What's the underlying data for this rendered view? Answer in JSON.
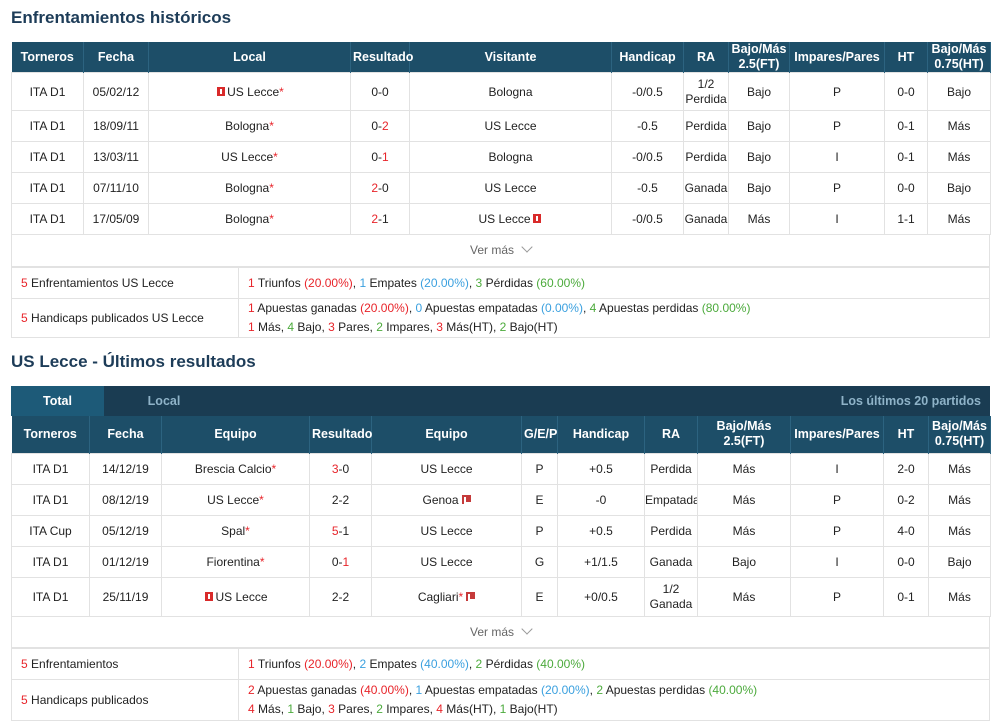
{
  "h2h": {
    "title": "Enfrentamientos históricos",
    "headers": [
      "Torneros",
      "Fecha",
      "Local",
      "Resultado",
      "Visitante",
      "Handicap",
      "RA",
      "Bajo/Más 2.5(FT)",
      "Impares/Pares",
      "HT",
      "Bajo/Más 0.75(HT)"
    ],
    "rows": [
      {
        "league": "ITA D1",
        "date": "05/02/12",
        "home": "US Lecce",
        "home_star": "*",
        "score_a": "0",
        "score_b": "0",
        "away": "Bologna",
        "away_star": "",
        "handicap": "-0/0.5",
        "ra1": "1/2",
        "ra2": "Perdida",
        "ou": "Bajo",
        "oe": "P",
        "ht": "0-0",
        "ou_ht": "Bajo"
      },
      {
        "league": "ITA D1",
        "date": "18/09/11",
        "home": "Bologna",
        "home_star": "*",
        "score_a": "0",
        "score_b": "2",
        "away": "US Lecce",
        "away_star": "",
        "handicap": "-0.5",
        "ra1": "Perdida",
        "ra2": "",
        "ou": "Bajo",
        "oe": "P",
        "ht": "0-1",
        "ou_ht": "Más"
      },
      {
        "league": "ITA D1",
        "date": "13/03/11",
        "home": "US Lecce",
        "home_star": "*",
        "score_a": "0",
        "score_b": "1",
        "away": "Bologna",
        "away_star": "",
        "handicap": "-0/0.5",
        "ra1": "Perdida",
        "ra2": "",
        "ou": "Bajo",
        "oe": "I",
        "ht": "0-1",
        "ou_ht": "Más"
      },
      {
        "league": "ITA D1",
        "date": "07/11/10",
        "home": "Bologna",
        "home_star": "*",
        "score_a": "2",
        "score_b": "0",
        "away": "US Lecce",
        "away_star": "",
        "handicap": "-0.5",
        "ra1": "Ganada",
        "ra2": "",
        "ou": "Bajo",
        "oe": "P",
        "ht": "0-0",
        "ou_ht": "Bajo"
      },
      {
        "league": "ITA D1",
        "date": "17/05/09",
        "home": "Bologna",
        "home_star": "*",
        "score_a": "2",
        "score_b": "1",
        "away": "US Lecce",
        "away_star": "",
        "handicap": "-0/0.5",
        "ra1": "Ganada",
        "ra2": "",
        "ou": "Más",
        "oe": "I",
        "ht": "1-1",
        "ou_ht": "Más"
      }
    ],
    "ver_mas": "Ver más",
    "summary1": {
      "label_n": "5",
      "label": "Enfrentamientos US Lecce",
      "n1": "1",
      "t1": "Triunfos",
      "p1": "(20.00%)",
      "n2": "1",
      "t2": "Empates",
      "p2": "(20.00%)",
      "n3": "3",
      "t3": "Pérdidas",
      "p3": "(60.00%)"
    },
    "summary2": {
      "label_n": "5",
      "label": "Handicaps publicados US Lecce",
      "n1": "1",
      "t1": "Apuestas ganadas",
      "p1": "(20.00%)",
      "n2": "0",
      "t2": "Apuestas empatadas",
      "p2": "(0.00%)",
      "n3": "4",
      "t3": "Apuestas perdidas",
      "p3": "(80.00%)",
      "l2_a": "1",
      "l2_at": "Más,",
      "l2_b": "4",
      "l2_bt": "Bajo,",
      "l2_c": "3",
      "l2_ct": "Pares,",
      "l2_d": "2",
      "l2_dt": "Impares,",
      "l2_e": "3",
      "l2_et": "Más(HT),",
      "l2_f": "2",
      "l2_ft": "Bajo(HT)"
    }
  },
  "recent": {
    "title": "US Lecce - Últimos resultados",
    "tab_total": "Total",
    "tab_local": "Local",
    "last_n": "Los últimos 20 partidos",
    "headers": [
      "Torneros",
      "Fecha",
      "Equipo",
      "Resultado",
      "Equipo",
      "G/E/P",
      "Handicap",
      "RA",
      "Bajo/Más 2.5(FT)",
      "Impares/Pares",
      "HT",
      "Bajo/Más 0.75(HT)"
    ],
    "rows": [
      {
        "league": "ITA D1",
        "date": "14/12/19",
        "home": "Brescia Calcio",
        "score_a": "3",
        "score_b": "0",
        "away": "US Lecce",
        "gep": "P",
        "handicap": "+0.5",
        "ra1": "Perdida",
        "ra2": "",
        "ou": "Más",
        "oe": "I",
        "ht": "2-0",
        "ou_ht": "Más"
      },
      {
        "league": "ITA D1",
        "date": "08/12/19",
        "home": "US Lecce",
        "score_a": "2",
        "score_b": "2",
        "away": "Genoa",
        "gep": "E",
        "handicap": "-0",
        "ra1": "Empatada",
        "ra2": "",
        "ou": "Más",
        "oe": "P",
        "ht": "0-2",
        "ou_ht": "Más"
      },
      {
        "league": "ITA Cup",
        "date": "05/12/19",
        "home": "Spal",
        "score_a": "5",
        "score_b": "1",
        "away": "US Lecce",
        "gep": "P",
        "handicap": "+0.5",
        "ra1": "Perdida",
        "ra2": "",
        "ou": "Más",
        "oe": "P",
        "ht": "4-0",
        "ou_ht": "Más"
      },
      {
        "league": "ITA D1",
        "date": "01/12/19",
        "home": "Fiorentina",
        "score_a": "0",
        "score_b": "1",
        "away": "US Lecce",
        "gep": "G",
        "handicap": "+1/1.5",
        "ra1": "Ganada",
        "ra2": "",
        "ou": "Bajo",
        "oe": "I",
        "ht": "0-0",
        "ou_ht": "Bajo"
      },
      {
        "league": "ITA D1",
        "date": "25/11/19",
        "home": "US Lecce",
        "score_a": "2",
        "score_b": "2",
        "away": "Cagliari",
        "gep": "E",
        "handicap": "+0/0.5",
        "ra1": "1/2",
        "ra2": "Ganada",
        "ou": "Más",
        "oe": "P",
        "ht": "0-1",
        "ou_ht": "Más"
      }
    ],
    "ver_mas": "Ver más",
    "summary1": {
      "label_n": "5",
      "label": "Enfrentamientos",
      "n1": "1",
      "t1": "Triunfos",
      "p1": "(20.00%)",
      "n2": "2",
      "t2": "Empates",
      "p2": "(40.00%)",
      "n3": "2",
      "t3": "Pérdidas",
      "p3": "(40.00%)"
    },
    "summary2": {
      "label_n": "5",
      "label": "Handicaps publicados",
      "n1": "2",
      "t1": "Apuestas ganadas",
      "p1": "(40.00%)",
      "n2": "1",
      "t2": "Apuestas empatadas",
      "p2": "(20.00%)",
      "n3": "2",
      "t3": "Apuestas perdidas",
      "p3": "(40.00%)",
      "l2_a": "4",
      "l2_at": "Más,",
      "l2_b": "1",
      "l2_bt": "Bajo,",
      "l2_c": "3",
      "l2_ct": "Pares,",
      "l2_d": "2",
      "l2_dt": "Impares,",
      "l2_e": "4",
      "l2_et": "Más(HT),",
      "l2_f": "1",
      "l2_ft": "Bajo(HT)"
    }
  }
}
